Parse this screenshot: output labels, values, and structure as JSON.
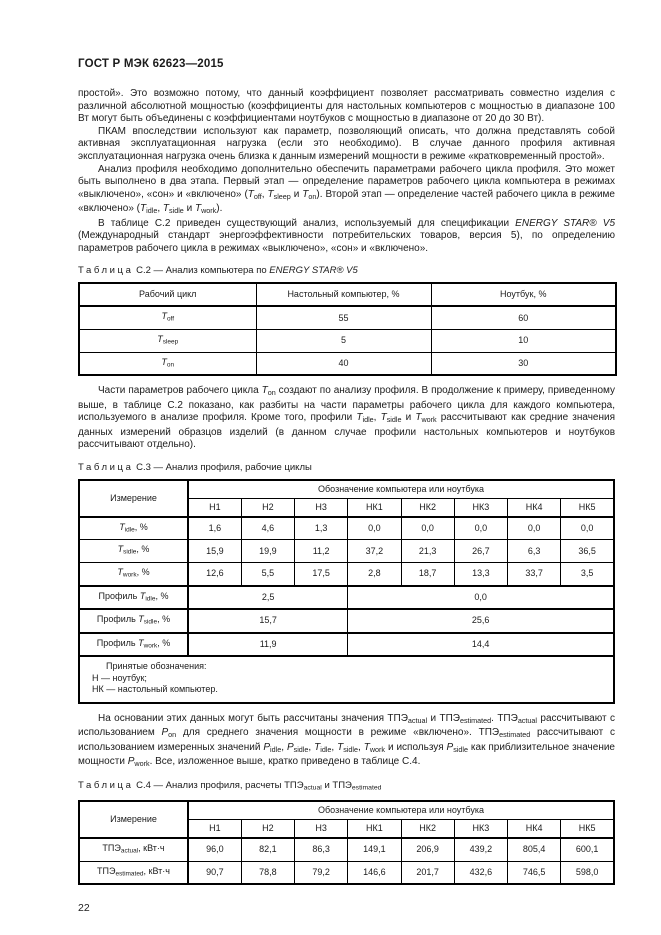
{
  "header": {
    "title": "ГОСТ Р МЭК 62623—2015"
  },
  "footer": {
    "page_number": "22"
  },
  "paragraphs": {
    "p1": [
      [
        "",
        "простой». Это возможно потому, что данный коэффициент позволяет рассматривать совместно изделия с различной абсолютной мощностью (коэффициенты для настольных компьютеров с мощностью в диапазоне 100 Вт могут быть объединены с коэффициентами ноутбуков с мощностью в диапазоне от 20 до 30 Вт)."
      ]
    ],
    "p2": [
      [
        "",
        "ПКАМ впоследствии используют как параметр, позволяющий описать, что должна представлять собой активная эксплуатационная нагрузка (если это необходимо). В случае данного профиля активная эксплуатационная нагрузка очень близка к данным измерений мощности в режиме «кратковременный простой»."
      ]
    ],
    "p3": [
      [
        "",
        "Анализ профиля необходимо дополнительно обеспечить параметрами рабочего цикла профиля. Это может быть выполнено в два этапа. Первый этап — определение параметров рабочего цикла компьютера в режимах «выключено», «сон» и «включено» ("
      ],
      [
        "i",
        "T"
      ],
      [
        "sub",
        "off"
      ],
      [
        "",
        ", "
      ],
      [
        "i",
        "T"
      ],
      [
        "sub",
        "sleep"
      ],
      [
        "",
        " и "
      ],
      [
        "i",
        "T"
      ],
      [
        "sub",
        "on"
      ],
      [
        "",
        "). Второй этап — определение частей рабочего цикла в режиме «включено» ("
      ],
      [
        "i",
        "T"
      ],
      [
        "sub",
        "idle"
      ],
      [
        "",
        ", "
      ],
      [
        "i",
        "T"
      ],
      [
        "sub",
        "sidle"
      ],
      [
        "",
        " и "
      ],
      [
        "i",
        "T"
      ],
      [
        "sub",
        "work"
      ],
      [
        "",
        ")."
      ]
    ],
    "p4": [
      [
        "",
        "В таблице С.2 приведен существующий анализ, используемый для спецификации "
      ],
      [
        "i",
        "ENERGY STAR® V5"
      ],
      [
        "",
        " (Международный стандарт энергоэффективности потребительских товаров, версия 5), по определению параметров рабочего цикла в режимах «выключено», «сон» и «включено»."
      ]
    ],
    "p5": [
      [
        "",
        "Части параметров рабочего цикла "
      ],
      [
        "i",
        "T"
      ],
      [
        "sub",
        "on"
      ],
      [
        "",
        " создают по анализу профиля. В продолжение к примеру, приведенному выше, в таблице С.2 показано, как разбиты на части параметры рабочего цикла для каждого компьютера, используемого в анализе профиля. Кроме того, профили "
      ],
      [
        "i",
        "T"
      ],
      [
        "sub",
        "idle"
      ],
      [
        "",
        ", "
      ],
      [
        "i",
        "T"
      ],
      [
        "sub",
        "sidle"
      ],
      [
        "",
        " и "
      ],
      [
        "i",
        "T"
      ],
      [
        "sub",
        "work"
      ],
      [
        "",
        " рассчитывают как средние значения данных измерений образцов изделий (в данном случае профили настольных компьютеров и ноутбуков рассчитывают отдельно)."
      ]
    ],
    "p6": [
      [
        "",
        "На основании этих данных могут быть рассчитаны значения ТПЭ"
      ],
      [
        "sub",
        "actual"
      ],
      [
        "",
        " и ТПЭ"
      ],
      [
        "sub",
        "estimated"
      ],
      [
        "",
        ". ТПЭ"
      ],
      [
        "sub",
        "actual"
      ],
      [
        "",
        " рассчитывают с использованием "
      ],
      [
        "i",
        "P"
      ],
      [
        "sub",
        "on"
      ],
      [
        "",
        " для среднего значения мощности в режиме «включено». ТПЭ"
      ],
      [
        "sub",
        "estimated"
      ],
      [
        "",
        " рассчитывают с использованием измеренных значений "
      ],
      [
        "i",
        "P"
      ],
      [
        "sub",
        "idle"
      ],
      [
        "",
        ", "
      ],
      [
        "i",
        "P"
      ],
      [
        "sub",
        "sidle"
      ],
      [
        "",
        ", "
      ],
      [
        "i",
        "T"
      ],
      [
        "sub",
        "idle"
      ],
      [
        "",
        ", "
      ],
      [
        "i",
        "T"
      ],
      [
        "sub",
        "sidle"
      ],
      [
        "",
        ", "
      ],
      [
        "i",
        "T"
      ],
      [
        "sub",
        "work"
      ],
      [
        "",
        " и используя "
      ],
      [
        "i",
        "P"
      ],
      [
        "sub",
        "sidle"
      ],
      [
        "",
        " как приблизительное значение мощности "
      ],
      [
        "i",
        "P"
      ],
      [
        "sub",
        "work"
      ],
      [
        "",
        ". Все, изложенное выше, кратко приведено в таблице С.4."
      ]
    ]
  },
  "captions": {
    "c2": [
      [
        "sp",
        "Таблица"
      ],
      [
        "",
        " С.2 — Анализ компьютера по "
      ],
      [
        "i",
        "ENERGY STAR® V5"
      ]
    ],
    "c3": [
      [
        "sp",
        "Таблица"
      ],
      [
        "",
        " С.3 — Анализ профиля, рабочие циклы"
      ]
    ],
    "c4": [
      [
        "sp",
        "Таблица"
      ],
      [
        "",
        " С.4 — Анализ профиля, расчеты ТПЭ"
      ],
      [
        "sub",
        "actual"
      ],
      [
        "",
        " и ТПЭ"
      ],
      [
        "sub",
        "estimated"
      ]
    ]
  },
  "tables": {
    "c2": {
      "columns": [
        "Рабочий цикл",
        "Настольный компьютер, %",
        "Ноутбук, %"
      ],
      "rows": [
        {
          "label": [
            [
              "i",
              "T"
            ],
            [
              "sub",
              "off"
            ]
          ],
          "desktop": "55",
          "notebook": "60"
        },
        {
          "label": [
            [
              "i",
              "T"
            ],
            [
              "sub",
              "sleep"
            ]
          ],
          "desktop": "5",
          "notebook": "10"
        },
        {
          "label": [
            [
              "i",
              "T"
            ],
            [
              "sub",
              "on"
            ]
          ],
          "desktop": "40",
          "notebook": "30"
        }
      ]
    },
    "c3": {
      "col1_header": "Измерение",
      "span_header": "Обозначение компьютера или ноутбука",
      "columns": [
        "Н1",
        "Н2",
        "Н3",
        "НК1",
        "НК2",
        "НК3",
        "НК4",
        "НК5"
      ],
      "rows": [
        {
          "label": [
            [
              "i",
              "T"
            ],
            [
              "sub",
              "idle"
            ],
            [
              "",
              ", %"
            ]
          ],
          "values": [
            "1,6",
            "4,6",
            "1,3",
            "0,0",
            "0,0",
            "0,0",
            "0,0",
            "0,0"
          ]
        },
        {
          "label": [
            [
              "i",
              "T"
            ],
            [
              "sub",
              "sidle"
            ],
            [
              "",
              ", %"
            ]
          ],
          "values": [
            "15,9",
            "19,9",
            "11,2",
            "37,2",
            "21,3",
            "26,7",
            "6,3",
            "36,5"
          ]
        },
        {
          "label": [
            [
              "i",
              "T"
            ],
            [
              "sub",
              "work"
            ],
            [
              "",
              ", %"
            ]
          ],
          "values": [
            "12,6",
            "5,5",
            "17,5",
            "2,8",
            "18,7",
            "13,3",
            "33,7",
            "3,5"
          ]
        }
      ],
      "profile_rows": [
        {
          "label": [
            [
              "",
              "Профиль "
            ],
            [
              "i",
              "T"
            ],
            [
              "sub",
              "idle"
            ],
            [
              "",
              ", %"
            ]
          ],
          "h": "2,5",
          "hk": "0,0"
        },
        {
          "label": [
            [
              "",
              "Профиль "
            ],
            [
              "i",
              "T"
            ],
            [
              "sub",
              "sidle"
            ],
            [
              "",
              ", %"
            ]
          ],
          "h": "15,7",
          "hk": "25,6"
        },
        {
          "label": [
            [
              "",
              "Профиль "
            ],
            [
              "i",
              "T"
            ],
            [
              "sub",
              "work"
            ],
            [
              "",
              ", %"
            ]
          ],
          "h": "11,9",
          "hk": "14,4"
        }
      ],
      "note": [
        "Принятые обозначения:",
        "Н — ноутбук;",
        "НК — настольный компьютер."
      ]
    },
    "c4": {
      "col1_header": "Измерение",
      "span_header": "Обозначение компьютера или ноутбука",
      "columns": [
        "Н1",
        "Н2",
        "Н3",
        "НК1",
        "НК2",
        "НК3",
        "НК4",
        "НК5"
      ],
      "rows": [
        {
          "label": [
            [
              "",
              "ТПЭ"
            ],
            [
              "sub",
              "actual"
            ],
            [
              "",
              ", кВт·ч"
            ]
          ],
          "values": [
            "96,0",
            "82,1",
            "86,3",
            "149,1",
            "206,9",
            "439,2",
            "805,4",
            "600,1"
          ]
        },
        {
          "label": [
            [
              "",
              "ТПЭ"
            ],
            [
              "sub",
              "estimated"
            ],
            [
              "",
              ", кВт·ч"
            ]
          ],
          "values": [
            "90,7",
            "78,8",
            "79,2",
            "146,6",
            "201,7",
            "432,6",
            "746,5",
            "598,0"
          ]
        }
      ]
    }
  }
}
